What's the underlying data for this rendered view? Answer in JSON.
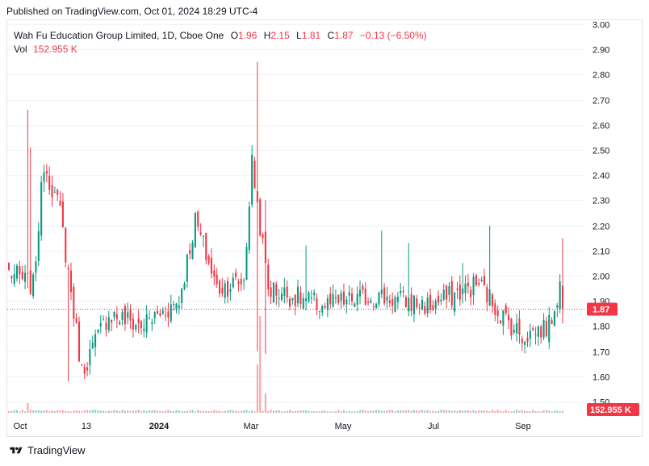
{
  "header": {
    "published": "Published on TradingView.com, Oct 01, 2024 18:29 UTC-4"
  },
  "legend": {
    "symbol": "Wah Fu Education Group Limited, 1D, Cboe One",
    "o_label": "O",
    "o_value": "1.96",
    "h_label": "H",
    "h_value": "2.15",
    "l_label": "L",
    "l_value": "1.81",
    "c_label": "C",
    "c_value": "1.87",
    "change": "−0.13 (−6.50%)",
    "vol_label": "Vol",
    "vol_value": "152.955 K"
  },
  "footer": {
    "brand": "TradingView"
  },
  "colors": {
    "up": "#089981",
    "down": "#f23645",
    "grid": "#f0f3fa",
    "last_price_tag": "#f23645"
  },
  "chart_data": {
    "type": "candlestick",
    "ylim": [
      1.5,
      3.0
    ],
    "y_ticks": [
      "1.50",
      "1.60",
      "1.70",
      "1.80",
      "1.90",
      "2.00",
      "2.10",
      "2.20",
      "2.30",
      "2.40",
      "2.50",
      "2.60",
      "2.70",
      "2.80",
      "2.90",
      "3.00"
    ],
    "x_ticks": [
      {
        "label": "Oct",
        "bold": false
      },
      {
        "label": "13",
        "bold": false
      },
      {
        "label": "2024",
        "bold": true
      },
      {
        "label": "Mar",
        "bold": false
      },
      {
        "label": "May",
        "bold": false
      },
      {
        "label": "Jul",
        "bold": false
      },
      {
        "label": "Sep",
        "bold": false
      }
    ],
    "last_price": 1.87,
    "last_price_label": "1.87",
    "volume_label": "152.955 K",
    "segments": [
      {
        "n": 10,
        "from": 2.02,
        "to": 1.96
      },
      {
        "n": 4,
        "from": 1.96,
        "to": 2.45
      },
      {
        "n": 6,
        "from": 2.45,
        "to": 2.25
      },
      {
        "n": 8,
        "from": 2.25,
        "to": 1.62
      },
      {
        "n": 10,
        "from": 1.62,
        "to": 1.85
      },
      {
        "n": 12,
        "from": 1.85,
        "to": 1.8
      },
      {
        "n": 14,
        "from": 1.8,
        "to": 1.9
      },
      {
        "n": 6,
        "from": 1.9,
        "to": 2.22
      },
      {
        "n": 8,
        "from": 2.22,
        "to": 1.95
      },
      {
        "n": 10,
        "from": 1.95,
        "to": 1.98
      },
      {
        "n": 3,
        "from": 1.98,
        "to": 2.45
      },
      {
        "n": 6,
        "from": 2.45,
        "to": 1.95
      },
      {
        "n": 20,
        "from": 1.95,
        "to": 1.88
      },
      {
        "n": 20,
        "from": 1.88,
        "to": 1.92
      },
      {
        "n": 20,
        "from": 1.92,
        "to": 1.88
      },
      {
        "n": 18,
        "from": 1.88,
        "to": 1.97
      },
      {
        "n": 8,
        "from": 1.97,
        "to": 1.85
      },
      {
        "n": 8,
        "from": 1.85,
        "to": 1.76
      },
      {
        "n": 10,
        "from": 1.76,
        "to": 1.8
      },
      {
        "n": 4,
        "from": 1.8,
        "to": 1.96
      },
      {
        "n": 1,
        "from": 1.96,
        "to": 1.87
      }
    ],
    "spikes": [
      {
        "i": 7,
        "high": 2.66,
        "low": 1.95
      },
      {
        "i": 8,
        "high": 2.51
      },
      {
        "i": 22,
        "low": 1.58
      },
      {
        "i": 92,
        "high": 2.85,
        "low": 1.7
      },
      {
        "i": 95,
        "high": 2.3,
        "low": 1.69
      },
      {
        "i": 110,
        "high": 2.12
      },
      {
        "i": 138,
        "high": 2.18
      },
      {
        "i": 148,
        "high": 2.13
      },
      {
        "i": 168,
        "high": 2.05
      },
      {
        "i": 178,
        "high": 2.2
      },
      {
        "i": 205,
        "high": 2.1
      },
      {
        "i": 222,
        "high": 1.74
      },
      {
        "i": 238,
        "high": 2.15,
        "low": 1.81
      }
    ],
    "volume_spikes": [
      {
        "i": 7,
        "v": 0.1
      },
      {
        "i": 92,
        "v": 0.5
      },
      {
        "i": 93,
        "v": 1.0
      },
      {
        "i": 95,
        "v": 0.2
      },
      {
        "i": 238,
        "v": 0.05
      }
    ]
  }
}
